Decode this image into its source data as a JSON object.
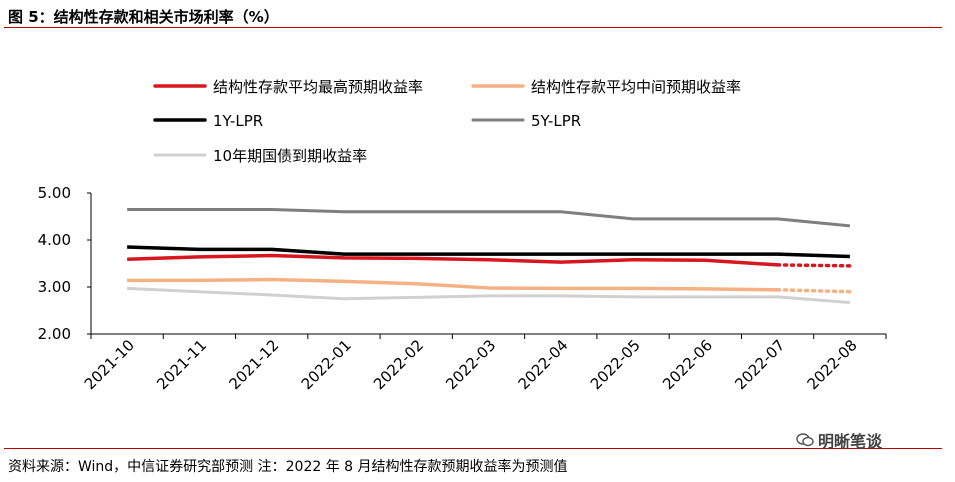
{
  "header": {
    "title": "图 5：结构性存款和相关市场利率（%）"
  },
  "footer": {
    "source": "资料来源：Wind，中信证券研究部预测 注：2022 年 8 月结构性存款预期收益率为预测值",
    "watermark": "明晰笔谈",
    "watermark_icon": "wechat-icon"
  },
  "chart_data": {
    "type": "line",
    "title": "",
    "xlabel": "",
    "ylabel": "",
    "ylim": [
      2.0,
      5.0
    ],
    "yticks": [
      "5.00",
      "4.00",
      "3.00",
      "2.00"
    ],
    "ytick_values": [
      5.0,
      4.0,
      3.0,
      2.0
    ],
    "categories": [
      "2021-10",
      "2021-11",
      "2021-12",
      "2022-01",
      "2022-02",
      "2022-03",
      "2022-04",
      "2022-05",
      "2022-06",
      "2022-07",
      "2022-08"
    ],
    "grid": false,
    "legend_position": "top",
    "forecast_from_index": 9,
    "series": [
      {
        "name": "结构性存款平均最高预期收益率",
        "color": "#d7171f",
        "width": 3.5,
        "forecast_dotted": true,
        "values": [
          3.59,
          3.64,
          3.67,
          3.62,
          3.61,
          3.58,
          3.53,
          3.58,
          3.57,
          3.47,
          3.45
        ]
      },
      {
        "name": "结构性存款平均中间预期收益率",
        "color": "#f4b183",
        "width": 3.5,
        "forecast_dotted": true,
        "values": [
          3.14,
          3.14,
          3.16,
          3.12,
          3.07,
          2.98,
          2.97,
          2.97,
          2.96,
          2.94,
          2.9
        ]
      },
      {
        "name": "1Y-LPR",
        "color": "#000000",
        "width": 3.5,
        "forecast_dotted": false,
        "values": [
          3.85,
          3.8,
          3.8,
          3.7,
          3.7,
          3.7,
          3.7,
          3.7,
          3.7,
          3.7,
          3.65
        ]
      },
      {
        "name": "5Y-LPR",
        "color": "#7f7f7f",
        "width": 3,
        "forecast_dotted": false,
        "values": [
          4.65,
          4.65,
          4.65,
          4.6,
          4.6,
          4.6,
          4.6,
          4.45,
          4.45,
          4.45,
          4.3
        ]
      },
      {
        "name": "10年期国债到期收益率",
        "color": "#d0d0d0",
        "width": 3,
        "forecast_dotted": false,
        "values": [
          2.97,
          2.9,
          2.83,
          2.75,
          2.78,
          2.81,
          2.81,
          2.79,
          2.79,
          2.79,
          2.67
        ]
      }
    ]
  }
}
